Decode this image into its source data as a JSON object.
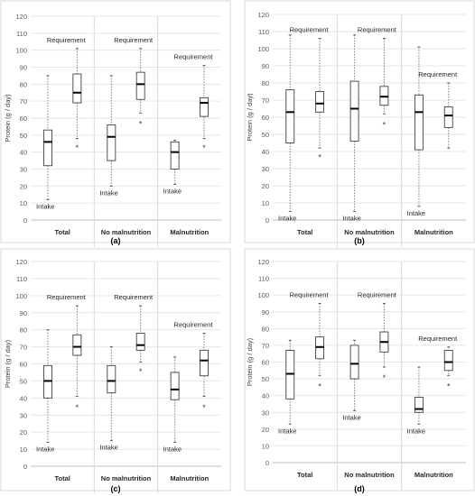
{
  "panels": [
    {
      "panel_label": "(a)",
      "ylabel": "Protein (g / day)",
      "yticks": [
        "0",
        "10",
        "20",
        "30",
        "40",
        "50",
        "60",
        "70",
        "80",
        "90",
        "100",
        "110",
        "120"
      ],
      "categories": [
        "Total",
        "No malnutrition",
        "Malnutrition"
      ],
      "series_labels": [
        "Intake",
        "Requirement"
      ]
    },
    {
      "panel_label": "(b)",
      "ylabel": "Protein (g / day)",
      "yticks": [
        "0",
        "10",
        "20",
        "30",
        "40",
        "50",
        "60",
        "70",
        "80",
        "90",
        "100",
        "110",
        "120"
      ],
      "categories": [
        "Total",
        "No malnutrition",
        "Malnutrition"
      ],
      "series_labels": [
        "Intake",
        "Requirement"
      ]
    },
    {
      "panel_label": "(c)",
      "ylabel": "Protein (g / day)",
      "yticks": [
        "0",
        "10",
        "20",
        "30",
        "40",
        "50",
        "60",
        "70",
        "80",
        "90",
        "100",
        "110",
        "120"
      ],
      "categories": [
        "Total",
        "No malnutrition",
        "Malnutrition"
      ],
      "series_labels": [
        "Intake",
        "Requirement"
      ]
    },
    {
      "panel_label": "(d)",
      "ylabel": "Protein (g / day)",
      "yticks": [
        "0",
        "10",
        "20",
        "30",
        "40",
        "50",
        "60",
        "70",
        "80",
        "90",
        "100",
        "110",
        "120"
      ],
      "categories": [
        "Total",
        "No malnutrition",
        "Malnutrition"
      ],
      "series_labels": [
        "Intake",
        "Requirement"
      ]
    }
  ],
  "chart_data": [
    {
      "type": "box",
      "panel": "(a)",
      "ylabel": "Protein (g / day)",
      "ylim": [
        0,
        120
      ],
      "categories": [
        "Total",
        "No malnutrition",
        "Malnutrition"
      ],
      "series": [
        {
          "name": "Intake",
          "boxes": [
            {
              "min": 12,
              "q1": 32,
              "median": 46,
              "q3": 53,
              "max": 85
            },
            {
              "min": 20,
              "q1": 35,
              "median": 49,
              "q3": 56,
              "max": 85
            },
            {
              "min": 21,
              "q1": 30,
              "median": 40,
              "q3": 46,
              "max": 47
            }
          ]
        },
        {
          "name": "Requirement",
          "boxes": [
            {
              "min": 48,
              "q1": 69,
              "median": 75,
              "q3": 86,
              "max": 101,
              "outliers": [
                43
              ]
            },
            {
              "min": 63,
              "q1": 71,
              "median": 80,
              "q3": 87,
              "max": 101,
              "outliers": [
                57
              ]
            },
            {
              "min": 48,
              "q1": 61,
              "median": 69,
              "q3": 72,
              "max": 91,
              "outliers": [
                43
              ]
            }
          ]
        }
      ]
    },
    {
      "type": "box",
      "panel": "(b)",
      "ylabel": "Protein (g / day)",
      "ylim": [
        0,
        120
      ],
      "categories": [
        "Total",
        "No malnutrition",
        "Malnutrition"
      ],
      "series": [
        {
          "name": "Intake",
          "boxes": [
            {
              "min": 5,
              "q1": 45,
              "median": 63,
              "q3": 76,
              "max": 108
            },
            {
              "min": 5,
              "q1": 46,
              "median": 65,
              "q3": 81,
              "max": 108
            },
            {
              "min": 8,
              "q1": 41,
              "median": 63,
              "q3": 73,
              "max": 101
            }
          ]
        },
        {
          "name": "Requirement",
          "boxes": [
            {
              "min": 42,
              "q1": 63,
              "median": 68,
              "q3": 75,
              "max": 106,
              "outliers": [
                37
              ]
            },
            {
              "min": 62,
              "q1": 67,
              "median": 72,
              "q3": 78,
              "max": 106,
              "outliers": [
                56
              ]
            },
            {
              "min": 42,
              "q1": 54,
              "median": 61,
              "q3": 66,
              "max": 80
            }
          ]
        }
      ]
    },
    {
      "type": "box",
      "panel": "(c)",
      "ylabel": "Protein (g / day)",
      "ylim": [
        0,
        120
      ],
      "categories": [
        "Total",
        "No malnutrition",
        "Malnutrition"
      ],
      "series": [
        {
          "name": "Intake",
          "boxes": [
            {
              "min": 14,
              "q1": 40,
              "median": 50,
              "q3": 59,
              "max": 80
            },
            {
              "min": 15,
              "q1": 43,
              "median": 50,
              "q3": 59,
              "max": 70
            },
            {
              "min": 14,
              "q1": 39,
              "median": 45,
              "q3": 55,
              "max": 64
            }
          ]
        },
        {
          "name": "Requirement",
          "boxes": [
            {
              "min": 41,
              "q1": 65,
              "median": 70,
              "q3": 77,
              "max": 94,
              "outliers": [
                35
              ]
            },
            {
              "min": 61,
              "q1": 68,
              "median": 71,
              "q3": 78,
              "max": 94,
              "outliers": [
                56
              ]
            },
            {
              "min": 41,
              "q1": 53,
              "median": 62,
              "q3": 68,
              "max": 78,
              "outliers": [
                35
              ]
            }
          ]
        }
      ]
    },
    {
      "type": "box",
      "panel": "(d)",
      "ylabel": "Protein (g / day)",
      "ylim": [
        0,
        120
      ],
      "categories": [
        "Total",
        "No malnutrition",
        "Malnutrition"
      ],
      "series": [
        {
          "name": "Intake",
          "boxes": [
            {
              "min": 23,
              "q1": 38,
              "median": 53,
              "q3": 67,
              "max": 73
            },
            {
              "min": 31,
              "q1": 50,
              "median": 59,
              "q3": 70,
              "max": 73
            },
            {
              "min": 23,
              "q1": 30,
              "median": 32,
              "q3": 39,
              "max": 57
            }
          ]
        },
        {
          "name": "Requirement",
          "boxes": [
            {
              "min": 52,
              "q1": 62,
              "median": 69,
              "q3": 75,
              "max": 95,
              "outliers": [
                46
              ]
            },
            {
              "min": 57,
              "q1": 66,
              "median": 72,
              "q3": 78,
              "max": 95,
              "outliers": [
                51
              ]
            },
            {
              "min": 52,
              "q1": 55,
              "median": 60,
              "q3": 67,
              "max": 69,
              "outliers": [
                46
              ]
            }
          ]
        }
      ]
    }
  ]
}
